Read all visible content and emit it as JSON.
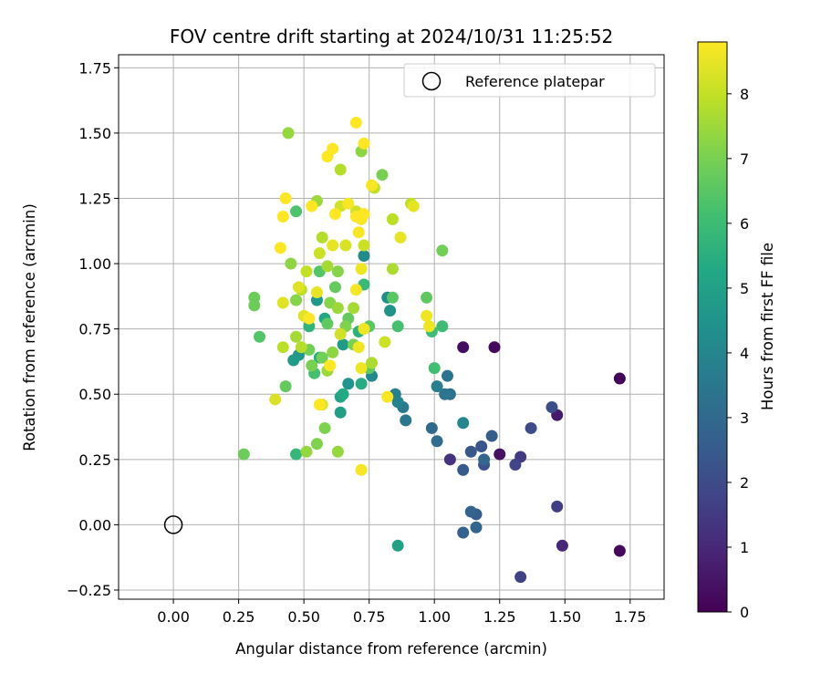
{
  "chart_data": {
    "type": "scatter",
    "title": "FOV centre drift starting at 2024/10/31 11:25:52",
    "xlabel": "Angular distance from reference (arcmin)",
    "ylabel": "Rotation from reference (arcmin)",
    "xlim": [
      -0.21,
      1.88
    ],
    "ylim": [
      -0.285,
      1.8
    ],
    "xticks": [
      0.0,
      0.25,
      0.5,
      0.75,
      1.0,
      1.25,
      1.5,
      1.75
    ],
    "xtick_labels": [
      "0.00",
      "0.25",
      "0.50",
      "0.75",
      "1.00",
      "1.25",
      "1.50",
      "1.75"
    ],
    "yticks": [
      -0.25,
      0.0,
      0.25,
      0.5,
      0.75,
      1.0,
      1.25,
      1.5,
      1.75
    ],
    "ytick_labels": [
      "−0.25",
      "0.00",
      "0.25",
      "0.50",
      "0.75",
      "1.00",
      "1.25",
      "1.50",
      "1.75"
    ],
    "grid": true,
    "legend": {
      "position": "upper right",
      "entries": [
        {
          "label": "Reference platepar",
          "marker": "open-circle",
          "x": 0.0,
          "y": 0.0
        }
      ]
    },
    "colorbar": {
      "label": "Hours from first FF file",
      "colormap": "viridis",
      "range": [
        0,
        8.8
      ],
      "ticks": [
        0,
        1,
        2,
        3,
        4,
        5,
        6,
        7,
        8
      ],
      "tick_labels": [
        "0",
        "1",
        "2",
        "3",
        "4",
        "5",
        "6",
        "7",
        "8"
      ]
    },
    "points": [
      {
        "x": 1.71,
        "y": 0.56,
        "c": 0.1
      },
      {
        "x": 1.71,
        "y": -0.1,
        "c": 0.2
      },
      {
        "x": 1.23,
        "y": 0.68,
        "c": 0.2
      },
      {
        "x": 1.11,
        "y": 0.68,
        "c": 0.3
      },
      {
        "x": 1.25,
        "y": 0.27,
        "c": 0.4
      },
      {
        "x": 1.47,
        "y": 0.42,
        "c": 0.6
      },
      {
        "x": 1.49,
        "y": -0.08,
        "c": 1.0
      },
      {
        "x": 1.06,
        "y": 0.25,
        "c": 1.3
      },
      {
        "x": 1.33,
        "y": 0.26,
        "c": 1.5
      },
      {
        "x": 1.47,
        "y": 0.07,
        "c": 1.6
      },
      {
        "x": 1.33,
        "y": -0.2,
        "c": 1.7
      },
      {
        "x": 1.31,
        "y": 0.23,
        "c": 1.8
      },
      {
        "x": 1.37,
        "y": 0.37,
        "c": 2.0
      },
      {
        "x": 1.45,
        "y": 0.45,
        "c": 2.1
      },
      {
        "x": 1.19,
        "y": 0.23,
        "c": 2.2
      },
      {
        "x": 1.18,
        "y": 0.3,
        "c": 2.3
      },
      {
        "x": 1.14,
        "y": 0.28,
        "c": 2.4
      },
      {
        "x": 1.11,
        "y": 0.21,
        "c": 2.5
      },
      {
        "x": 1.22,
        "y": 0.34,
        "c": 2.6
      },
      {
        "x": 1.16,
        "y": 0.04,
        "c": 2.6
      },
      {
        "x": 1.11,
        "y": -0.03,
        "c": 2.7
      },
      {
        "x": 1.14,
        "y": 0.05,
        "c": 2.8
      },
      {
        "x": 1.16,
        "y": -0.01,
        "c": 2.9
      },
      {
        "x": 1.19,
        "y": 0.25,
        "c": 2.9
      },
      {
        "x": 0.99,
        "y": 0.37,
        "c": 3.0
      },
      {
        "x": 1.01,
        "y": 0.32,
        "c": 3.1
      },
      {
        "x": 1.06,
        "y": 0.5,
        "c": 3.2
      },
      {
        "x": 1.05,
        "y": 0.57,
        "c": 3.3
      },
      {
        "x": 1.04,
        "y": 0.5,
        "c": 3.4
      },
      {
        "x": 0.89,
        "y": 0.4,
        "c": 3.5
      },
      {
        "x": 0.88,
        "y": 0.45,
        "c": 3.6
      },
      {
        "x": 1.01,
        "y": 0.53,
        "c": 3.7
      },
      {
        "x": 0.85,
        "y": 0.5,
        "c": 3.8
      },
      {
        "x": 0.86,
        "y": 0.47,
        "c": 3.9
      },
      {
        "x": 1.11,
        "y": 0.39,
        "c": 4.0
      },
      {
        "x": 0.76,
        "y": 0.57,
        "c": 4.1
      },
      {
        "x": 0.73,
        "y": 1.03,
        "c": 4.2
      },
      {
        "x": 0.82,
        "y": 0.87,
        "c": 4.3
      },
      {
        "x": 0.83,
        "y": 0.82,
        "c": 4.4
      },
      {
        "x": 0.67,
        "y": 0.54,
        "c": 4.5
      },
      {
        "x": 0.48,
        "y": 0.65,
        "c": 4.6
      },
      {
        "x": 0.55,
        "y": 0.86,
        "c": 4.7
      },
      {
        "x": 0.65,
        "y": 0.69,
        "c": 4.8
      },
      {
        "x": 0.46,
        "y": 0.63,
        "c": 4.8
      },
      {
        "x": 0.64,
        "y": 0.43,
        "c": 4.9
      },
      {
        "x": 0.86,
        "y": -0.08,
        "c": 5.0
      },
      {
        "x": 0.64,
        "y": 0.49,
        "c": 5.1
      },
      {
        "x": 0.58,
        "y": 0.79,
        "c": 5.2
      },
      {
        "x": 0.65,
        "y": 0.5,
        "c": 5.3
      },
      {
        "x": 0.72,
        "y": 0.54,
        "c": 5.4
      },
      {
        "x": 0.56,
        "y": 0.64,
        "c": 5.5
      },
      {
        "x": 0.71,
        "y": 0.74,
        "c": 5.6
      },
      {
        "x": 0.52,
        "y": 0.76,
        "c": 5.7
      },
      {
        "x": 0.47,
        "y": 0.27,
        "c": 5.8
      },
      {
        "x": 0.73,
        "y": 0.92,
        "c": 5.9
      },
      {
        "x": 1.03,
        "y": 0.76,
        "c": 6.0
      },
      {
        "x": 0.99,
        "y": 0.74,
        "c": 6.0
      },
      {
        "x": 1.0,
        "y": 0.6,
        "c": 6.1
      },
      {
        "x": 0.86,
        "y": 0.76,
        "c": 6.2
      },
      {
        "x": 0.54,
        "y": 0.58,
        "c": 6.2
      },
      {
        "x": 0.47,
        "y": 1.2,
        "c": 6.3
      },
      {
        "x": 0.33,
        "y": 0.72,
        "c": 6.4
      },
      {
        "x": 0.56,
        "y": 0.97,
        "c": 6.4
      },
      {
        "x": 0.75,
        "y": 0.76,
        "c": 6.5
      },
      {
        "x": 0.84,
        "y": 0.87,
        "c": 6.5
      },
      {
        "x": 0.97,
        "y": 0.87,
        "c": 6.6
      },
      {
        "x": 0.75,
        "y": 0.6,
        "c": 6.6
      },
      {
        "x": 0.59,
        "y": 0.77,
        "c": 6.6
      },
      {
        "x": 0.67,
        "y": 0.79,
        "c": 6.7
      },
      {
        "x": 0.43,
        "y": 0.53,
        "c": 6.7
      },
      {
        "x": 0.62,
        "y": 0.91,
        "c": 6.7
      },
      {
        "x": 0.31,
        "y": 0.87,
        "c": 6.8
      },
      {
        "x": 0.31,
        "y": 0.84,
        "c": 6.8
      },
      {
        "x": 0.27,
        "y": 0.27,
        "c": 6.8
      },
      {
        "x": 0.52,
        "y": 0.67,
        "c": 6.9
      },
      {
        "x": 1.03,
        "y": 1.05,
        "c": 6.9
      },
      {
        "x": 0.57,
        "y": 0.64,
        "c": 6.9
      },
      {
        "x": 0.69,
        "y": 0.69,
        "c": 7.0
      },
      {
        "x": 0.8,
        "y": 1.34,
        "c": 7.0
      },
      {
        "x": 0.53,
        "y": 0.61,
        "c": 7.0
      },
      {
        "x": 0.66,
        "y": 0.76,
        "c": 7.1
      },
      {
        "x": 0.55,
        "y": 0.31,
        "c": 7.1
      },
      {
        "x": 0.58,
        "y": 0.37,
        "c": 7.1
      },
      {
        "x": 0.47,
        "y": 0.86,
        "c": 7.2
      },
      {
        "x": 0.63,
        "y": 0.97,
        "c": 7.2
      },
      {
        "x": 0.6,
        "y": 0.85,
        "c": 7.2
      },
      {
        "x": 0.45,
        "y": 1.0,
        "c": 7.3
      },
      {
        "x": 0.61,
        "y": 0.66,
        "c": 7.3
      },
      {
        "x": 0.72,
        "y": 1.43,
        "c": 7.3
      },
      {
        "x": 0.63,
        "y": 0.28,
        "c": 7.4
      },
      {
        "x": 0.51,
        "y": 0.28,
        "c": 7.4
      },
      {
        "x": 0.44,
        "y": 1.5,
        "c": 7.4
      },
      {
        "x": 0.55,
        "y": 1.24,
        "c": 7.5
      },
      {
        "x": 0.59,
        "y": 0.59,
        "c": 7.5
      },
      {
        "x": 0.63,
        "y": 0.83,
        "c": 7.5
      },
      {
        "x": 0.69,
        "y": 0.83,
        "c": 7.6
      },
      {
        "x": 0.59,
        "y": 0.99,
        "c": 7.6
      },
      {
        "x": 0.47,
        "y": 0.72,
        "c": 7.6
      },
      {
        "x": 0.84,
        "y": 0.98,
        "c": 7.7
      },
      {
        "x": 0.76,
        "y": 0.62,
        "c": 7.7
      },
      {
        "x": 0.57,
        "y": 1.1,
        "c": 7.8
      },
      {
        "x": 0.64,
        "y": 1.36,
        "c": 7.8
      },
      {
        "x": 0.49,
        "y": 0.68,
        "c": 7.8
      },
      {
        "x": 0.49,
        "y": 0.9,
        "c": 7.9
      },
      {
        "x": 0.42,
        "y": 0.68,
        "c": 7.9
      },
      {
        "x": 0.84,
        "y": 1.17,
        "c": 7.9
      },
      {
        "x": 0.91,
        "y": 1.23,
        "c": 8.0
      },
      {
        "x": 0.51,
        "y": 0.97,
        "c": 8.0
      },
      {
        "x": 0.77,
        "y": 1.29,
        "c": 8.0
      },
      {
        "x": 0.81,
        "y": 0.7,
        "c": 8.1
      },
      {
        "x": 0.73,
        "y": 1.07,
        "c": 8.1
      },
      {
        "x": 0.56,
        "y": 1.04,
        "c": 8.1
      },
      {
        "x": 0.64,
        "y": 1.22,
        "c": 8.2
      },
      {
        "x": 0.7,
        "y": 1.2,
        "c": 8.2
      },
      {
        "x": 0.64,
        "y": 0.73,
        "c": 8.2
      },
      {
        "x": 0.57,
        "y": 0.46,
        "c": 8.3
      },
      {
        "x": 0.39,
        "y": 0.48,
        "c": 8.3
      },
      {
        "x": 0.66,
        "y": 1.07,
        "c": 8.3
      },
      {
        "x": 0.42,
        "y": 0.85,
        "c": 8.4
      },
      {
        "x": 0.48,
        "y": 0.91,
        "c": 8.4
      },
      {
        "x": 0.5,
        "y": 0.8,
        "c": 8.4
      },
      {
        "x": 0.61,
        "y": 1.07,
        "c": 8.5
      },
      {
        "x": 0.92,
        "y": 1.22,
        "c": 8.5
      },
      {
        "x": 0.87,
        "y": 1.1,
        "c": 8.5
      },
      {
        "x": 0.55,
        "y": 0.89,
        "c": 8.5
      },
      {
        "x": 0.97,
        "y": 0.8,
        "c": 8.6
      },
      {
        "x": 0.98,
        "y": 0.76,
        "c": 8.6
      },
      {
        "x": 0.71,
        "y": 0.68,
        "c": 8.6
      },
      {
        "x": 0.72,
        "y": 0.6,
        "c": 8.6
      },
      {
        "x": 0.73,
        "y": 0.75,
        "c": 8.6
      },
      {
        "x": 0.72,
        "y": 0.98,
        "c": 8.6
      },
      {
        "x": 0.7,
        "y": 0.9,
        "c": 8.7
      },
      {
        "x": 0.72,
        "y": 0.21,
        "c": 8.7
      },
      {
        "x": 0.82,
        "y": 0.49,
        "c": 8.7
      },
      {
        "x": 0.76,
        "y": 1.3,
        "c": 8.7
      },
      {
        "x": 0.71,
        "y": 1.12,
        "c": 8.7
      },
      {
        "x": 0.72,
        "y": 1.17,
        "c": 8.7
      },
      {
        "x": 0.67,
        "y": 1.23,
        "c": 8.7
      },
      {
        "x": 0.7,
        "y": 1.18,
        "c": 8.8
      },
      {
        "x": 0.73,
        "y": 1.19,
        "c": 8.8
      },
      {
        "x": 0.62,
        "y": 1.19,
        "c": 8.8
      },
      {
        "x": 0.61,
        "y": 1.44,
        "c": 8.8
      },
      {
        "x": 0.59,
        "y": 1.41,
        "c": 8.8
      },
      {
        "x": 0.7,
        "y": 1.54,
        "c": 8.8
      },
      {
        "x": 0.73,
        "y": 1.46,
        "c": 8.8
      },
      {
        "x": 0.53,
        "y": 1.22,
        "c": 8.8
      },
      {
        "x": 0.42,
        "y": 1.18,
        "c": 8.8
      },
      {
        "x": 0.43,
        "y": 1.25,
        "c": 8.8
      },
      {
        "x": 0.41,
        "y": 1.06,
        "c": 8.8
      },
      {
        "x": 0.52,
        "y": 0.79,
        "c": 8.8
      },
      {
        "x": 0.6,
        "y": 0.61,
        "c": 8.8
      },
      {
        "x": 0.56,
        "y": 0.46,
        "c": 8.8
      }
    ]
  }
}
